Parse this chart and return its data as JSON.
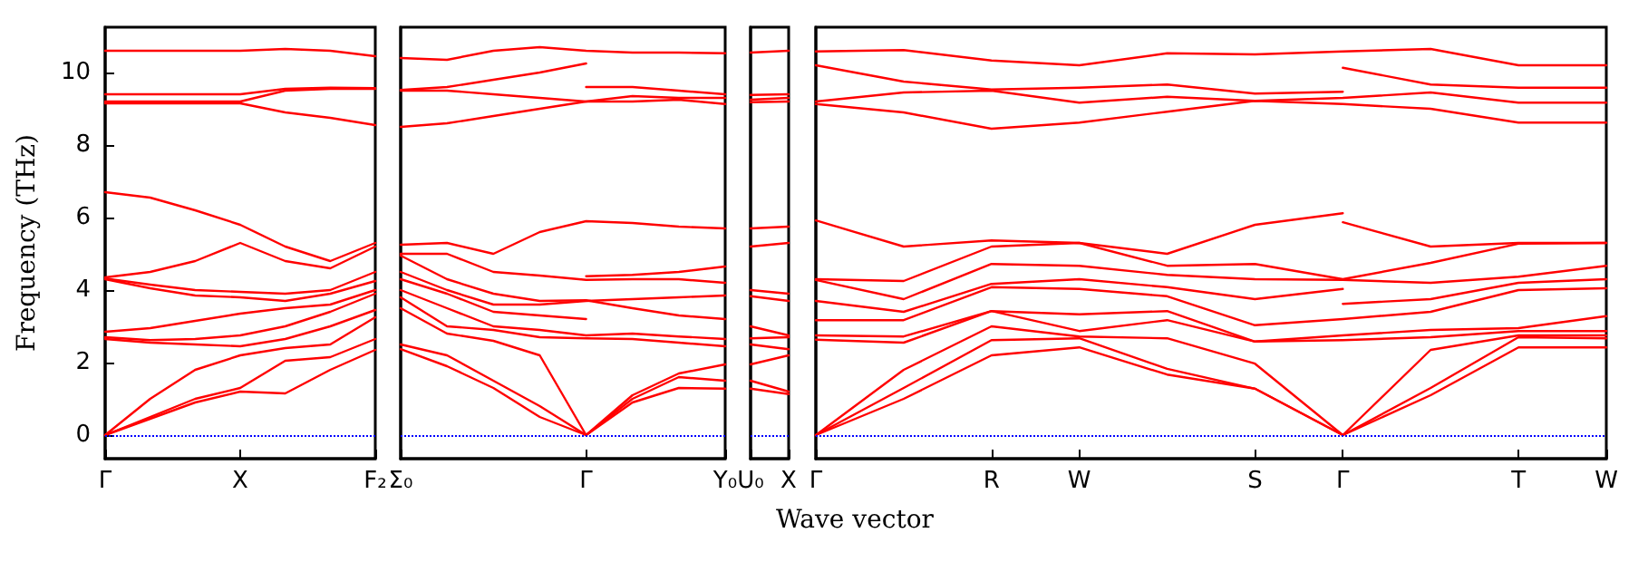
{
  "chart_data": [
    {
      "type": "line",
      "ylabel": "Frequency (THz)",
      "marker": "none",
      "categories": [
        "Γ",
        null,
        null,
        "X",
        null,
        null,
        "F₂"
      ],
      "ylim": [
        -0.65,
        11.25
      ],
      "yticks": [
        0,
        2,
        4,
        6,
        8,
        10
      ],
      "ref_lines": [
        {
          "axis": "y",
          "value": 0,
          "color": "#0000ff",
          "line_style": "dotted"
        }
      ],
      "series": [
        {
          "color": "#ff0000",
          "values": [
            0,
            0.45,
            0.9,
            1.2,
            1.15,
            1.8,
            2.35
          ]
        },
        {
          "color": "#ff0000",
          "values": [
            0,
            0.5,
            1.0,
            1.3,
            2.05,
            2.15,
            2.65
          ]
        },
        {
          "color": "#ff0000",
          "values": [
            0,
            1.0,
            1.8,
            2.2,
            2.4,
            2.5,
            3.25
          ]
        },
        {
          "color": "#ff0000",
          "values": [
            2.65,
            2.55,
            2.5,
            2.45,
            2.65,
            3.0,
            3.45
          ]
        },
        {
          "color": "#ff0000",
          "values": [
            2.7,
            2.62,
            2.65,
            2.75,
            3.0,
            3.4,
            3.9
          ]
        },
        {
          "color": "#ff0000",
          "values": [
            2.85,
            2.95,
            3.15,
            3.35,
            3.5,
            3.6,
            4.0
          ]
        },
        {
          "color": "#ff0000",
          "values": [
            4.3,
            4.05,
            3.85,
            3.8,
            3.7,
            3.9,
            4.25
          ]
        },
        {
          "color": "#ff0000",
          "values": [
            4.32,
            4.15,
            4.0,
            3.95,
            3.9,
            4.0,
            4.5
          ]
        },
        {
          "color": "#ff0000",
          "values": [
            4.35,
            4.5,
            4.8,
            5.3,
            4.8,
            4.6,
            5.2
          ]
        },
        {
          "color": "#ff0000",
          "values": [
            6.7,
            6.55,
            6.2,
            5.8,
            5.2,
            4.8,
            5.3
          ]
        },
        {
          "color": "#ff0000",
          "values": [
            9.15,
            9.15,
            9.15,
            9.15,
            8.9,
            8.75,
            8.55
          ]
        },
        {
          "color": "#ff0000",
          "values": [
            9.2,
            9.2,
            9.2,
            9.2,
            9.5,
            9.55,
            9.55
          ]
        },
        {
          "color": "#ff0000",
          "values": [
            9.4,
            9.4,
            9.4,
            9.4,
            9.55,
            9.58,
            9.57
          ]
        },
        {
          "color": "#ff0000",
          "values": [
            10.6,
            10.6,
            10.6,
            10.6,
            10.65,
            10.6,
            10.45
          ]
        }
      ]
    },
    {
      "type": "line",
      "marker": "none",
      "tick_labels": "x",
      "categories": [
        "Σ₀",
        null,
        null,
        null,
        "Γ",
        null,
        null,
        "Y₀"
      ],
      "ylim": [
        -0.65,
        11.25
      ],
      "ref_lines": [
        {
          "axis": "y",
          "value": 0,
          "color": "#0000ff",
          "line_style": "dotted"
        }
      ],
      "series": [
        {
          "color": "#ff0000",
          "values": [
            2.37,
            1.9,
            1.3,
            0.5,
            0,
            0.9,
            1.3,
            1.28
          ]
        },
        {
          "color": "#ff0000",
          "values": [
            2.5,
            2.2,
            1.5,
            0.8,
            0,
            1.0,
            1.6,
            1.5
          ]
        },
        {
          "color": "#ff0000",
          "values": [
            3.5,
            2.8,
            2.6,
            2.2,
            0,
            1.1,
            1.7,
            1.95
          ]
        },
        {
          "color": "#ff0000",
          "values": [
            3.8,
            3.0,
            2.9,
            2.7,
            2.67,
            2.65,
            2.55,
            2.45
          ]
        },
        {
          "color": "#ff0000",
          "values": [
            4.0,
            3.5,
            3.0,
            2.9,
            2.75,
            2.8,
            2.72,
            2.65
          ]
        },
        {
          "color": "#ff0000",
          "values": [
            4.3,
            3.9,
            3.4,
            3.3,
            3.2,
            null,
            null,
            null
          ]
        },
        {
          "color": "#ff0000",
          "values": [
            4.5,
            4.0,
            3.6,
            3.6,
            3.7,
            3.75,
            3.8,
            3.85
          ]
        },
        {
          "color": "#ff0000",
          "values": [
            4.95,
            4.3,
            3.9,
            3.7,
            3.72,
            3.5,
            3.3,
            3.2
          ]
        },
        {
          "color": "#ff0000",
          "values": [
            5.0,
            5.0,
            4.5,
            4.4,
            4.28,
            4.3,
            4.3,
            4.2
          ]
        },
        {
          "color": "#ff0000",
          "values": [
            null,
            null,
            null,
            null,
            4.38,
            4.42,
            4.5,
            4.65
          ]
        },
        {
          "color": "#ff0000",
          "values": [
            5.25,
            5.3,
            5.0,
            5.6,
            5.9,
            5.85,
            5.75,
            5.7
          ]
        },
        {
          "color": "#ff0000",
          "values": [
            8.5,
            8.6,
            8.8,
            9.0,
            9.2,
            9.2,
            9.25,
            9.13
          ]
        },
        {
          "color": "#ff0000",
          "values": [
            9.5,
            9.5,
            9.4,
            9.3,
            9.2,
            9.35,
            9.3,
            9.3
          ]
        },
        {
          "color": "#ff0000",
          "values": [
            9.52,
            9.6,
            9.8,
            10.0,
            10.25,
            null,
            null,
            null
          ]
        },
        {
          "color": "#ff0000",
          "values": [
            null,
            null,
            null,
            null,
            9.6,
            9.6,
            9.5,
            9.4
          ]
        },
        {
          "color": "#ff0000",
          "values": [
            10.4,
            10.35,
            10.6,
            10.7,
            10.6,
            10.55,
            10.55,
            10.53
          ]
        }
      ]
    },
    {
      "type": "line",
      "marker": "none",
      "tick_labels": "x",
      "categories": [
        "U₀",
        "X"
      ],
      "ylim": [
        -0.65,
        11.25
      ],
      "ref_lines": [
        {
          "axis": "y",
          "value": 0,
          "color": "#0000ff",
          "line_style": "dotted"
        }
      ],
      "series": [
        {
          "color": "#ff0000",
          "values": [
            1.28,
            1.13
          ]
        },
        {
          "color": "#ff0000",
          "values": [
            1.5,
            1.2
          ]
        },
        {
          "color": "#ff0000",
          "values": [
            1.95,
            2.2
          ]
        },
        {
          "color": "#ff0000",
          "values": [
            2.5,
            2.37
          ]
        },
        {
          "color": "#ff0000",
          "values": [
            2.67,
            2.7
          ]
        },
        {
          "color": "#ff0000",
          "values": [
            3.0,
            2.75
          ]
        },
        {
          "color": "#ff0000",
          "values": [
            3.83,
            3.7
          ]
        },
        {
          "color": "#ff0000",
          "values": [
            4.0,
            3.9
          ]
        },
        {
          "color": "#ff0000",
          "values": [
            5.2,
            5.3
          ]
        },
        {
          "color": "#ff0000",
          "values": [
            5.7,
            5.75
          ]
        },
        {
          "color": "#ff0000",
          "values": [
            9.18,
            9.2
          ]
        },
        {
          "color": "#ff0000",
          "values": [
            9.25,
            9.3
          ]
        },
        {
          "color": "#ff0000",
          "values": [
            9.38,
            9.4
          ]
        },
        {
          "color": "#ff0000",
          "values": [
            10.55,
            10.6
          ]
        }
      ]
    },
    {
      "type": "line",
      "xlabel": "Wave vector",
      "marker": "none",
      "tick_labels": "x",
      "categories": [
        "Γ",
        null,
        "R",
        "W",
        null,
        "S",
        "Γ",
        null,
        "T",
        "W"
      ],
      "ylim": [
        -0.65,
        11.25
      ],
      "ref_lines": [
        {
          "axis": "y",
          "value": 0,
          "color": "#0000ff",
          "line_style": "dotted"
        }
      ],
      "series": [
        {
          "color": "#ff0000",
          "values": [
            0,
            1.0,
            2.2,
            2.42,
            1.67,
            1.28,
            0,
            1.1,
            2.42,
            2.42
          ]
        },
        {
          "color": "#ff0000",
          "values": [
            0,
            1.3,
            2.62,
            2.67,
            1.83,
            1.28,
            0,
            1.3,
            2.7,
            2.67
          ]
        },
        {
          "color": "#ff0000",
          "values": [
            0,
            1.8,
            3.0,
            2.72,
            2.67,
            1.97,
            0,
            2.35,
            2.75,
            2.75
          ]
        },
        {
          "color": "#ff0000",
          "values": [
            2.63,
            2.55,
            3.42,
            2.87,
            3.17,
            2.58,
            2.62,
            2.7,
            2.87,
            2.87
          ]
        },
        {
          "color": "#ff0000",
          "values": [
            2.75,
            2.72,
            3.42,
            3.33,
            3.42,
            2.58,
            2.75,
            2.9,
            2.95,
            3.28
          ]
        },
        {
          "color": "#ff0000",
          "values": [
            3.17,
            3.17,
            4.08,
            4.03,
            3.83,
            3.03,
            3.2,
            3.4,
            4.0,
            4.05
          ]
        },
        {
          "color": "#ff0000",
          "values": [
            3.7,
            3.4,
            4.17,
            4.3,
            4.08,
            3.75,
            4.03,
            null,
            null,
            null
          ]
        },
        {
          "color": "#ff0000",
          "values": [
            null,
            null,
            null,
            null,
            null,
            null,
            3.62,
            3.75,
            4.2,
            4.3
          ]
        },
        {
          "color": "#ff0000",
          "values": [
            4.28,
            3.75,
            4.72,
            4.67,
            4.42,
            4.3,
            4.28,
            4.2,
            4.37,
            4.67
          ]
        },
        {
          "color": "#ff0000",
          "values": [
            4.3,
            4.25,
            5.2,
            5.3,
            4.67,
            4.72,
            4.3,
            4.75,
            5.28,
            5.3
          ]
        },
        {
          "color": "#ff0000",
          "values": [
            5.92,
            5.2,
            5.37,
            5.3,
            5.0,
            5.8,
            6.12,
            null,
            null,
            null
          ]
        },
        {
          "color": "#ff0000",
          "values": [
            null,
            null,
            null,
            null,
            null,
            null,
            5.87,
            5.2,
            5.3,
            5.3
          ]
        },
        {
          "color": "#ff0000",
          "values": [
            9.13,
            8.9,
            8.45,
            8.62,
            8.92,
            9.22,
            9.13,
            9.0,
            8.62,
            8.62
          ]
        },
        {
          "color": "#ff0000",
          "values": [
            9.2,
            9.45,
            9.5,
            9.17,
            9.33,
            9.22,
            9.3,
            9.45,
            9.17,
            9.17
          ]
        },
        {
          "color": "#ff0000",
          "values": [
            10.2,
            9.75,
            9.53,
            9.58,
            9.67,
            9.42,
            9.47,
            null,
            null,
            null
          ]
        },
        {
          "color": "#ff0000",
          "values": [
            null,
            null,
            null,
            null,
            null,
            null,
            10.13,
            9.67,
            9.58,
            9.58
          ]
        },
        {
          "color": "#ff0000",
          "values": [
            10.58,
            10.62,
            10.33,
            10.2,
            10.53,
            10.5,
            10.58,
            10.65,
            10.2,
            10.2
          ]
        }
      ]
    }
  ]
}
